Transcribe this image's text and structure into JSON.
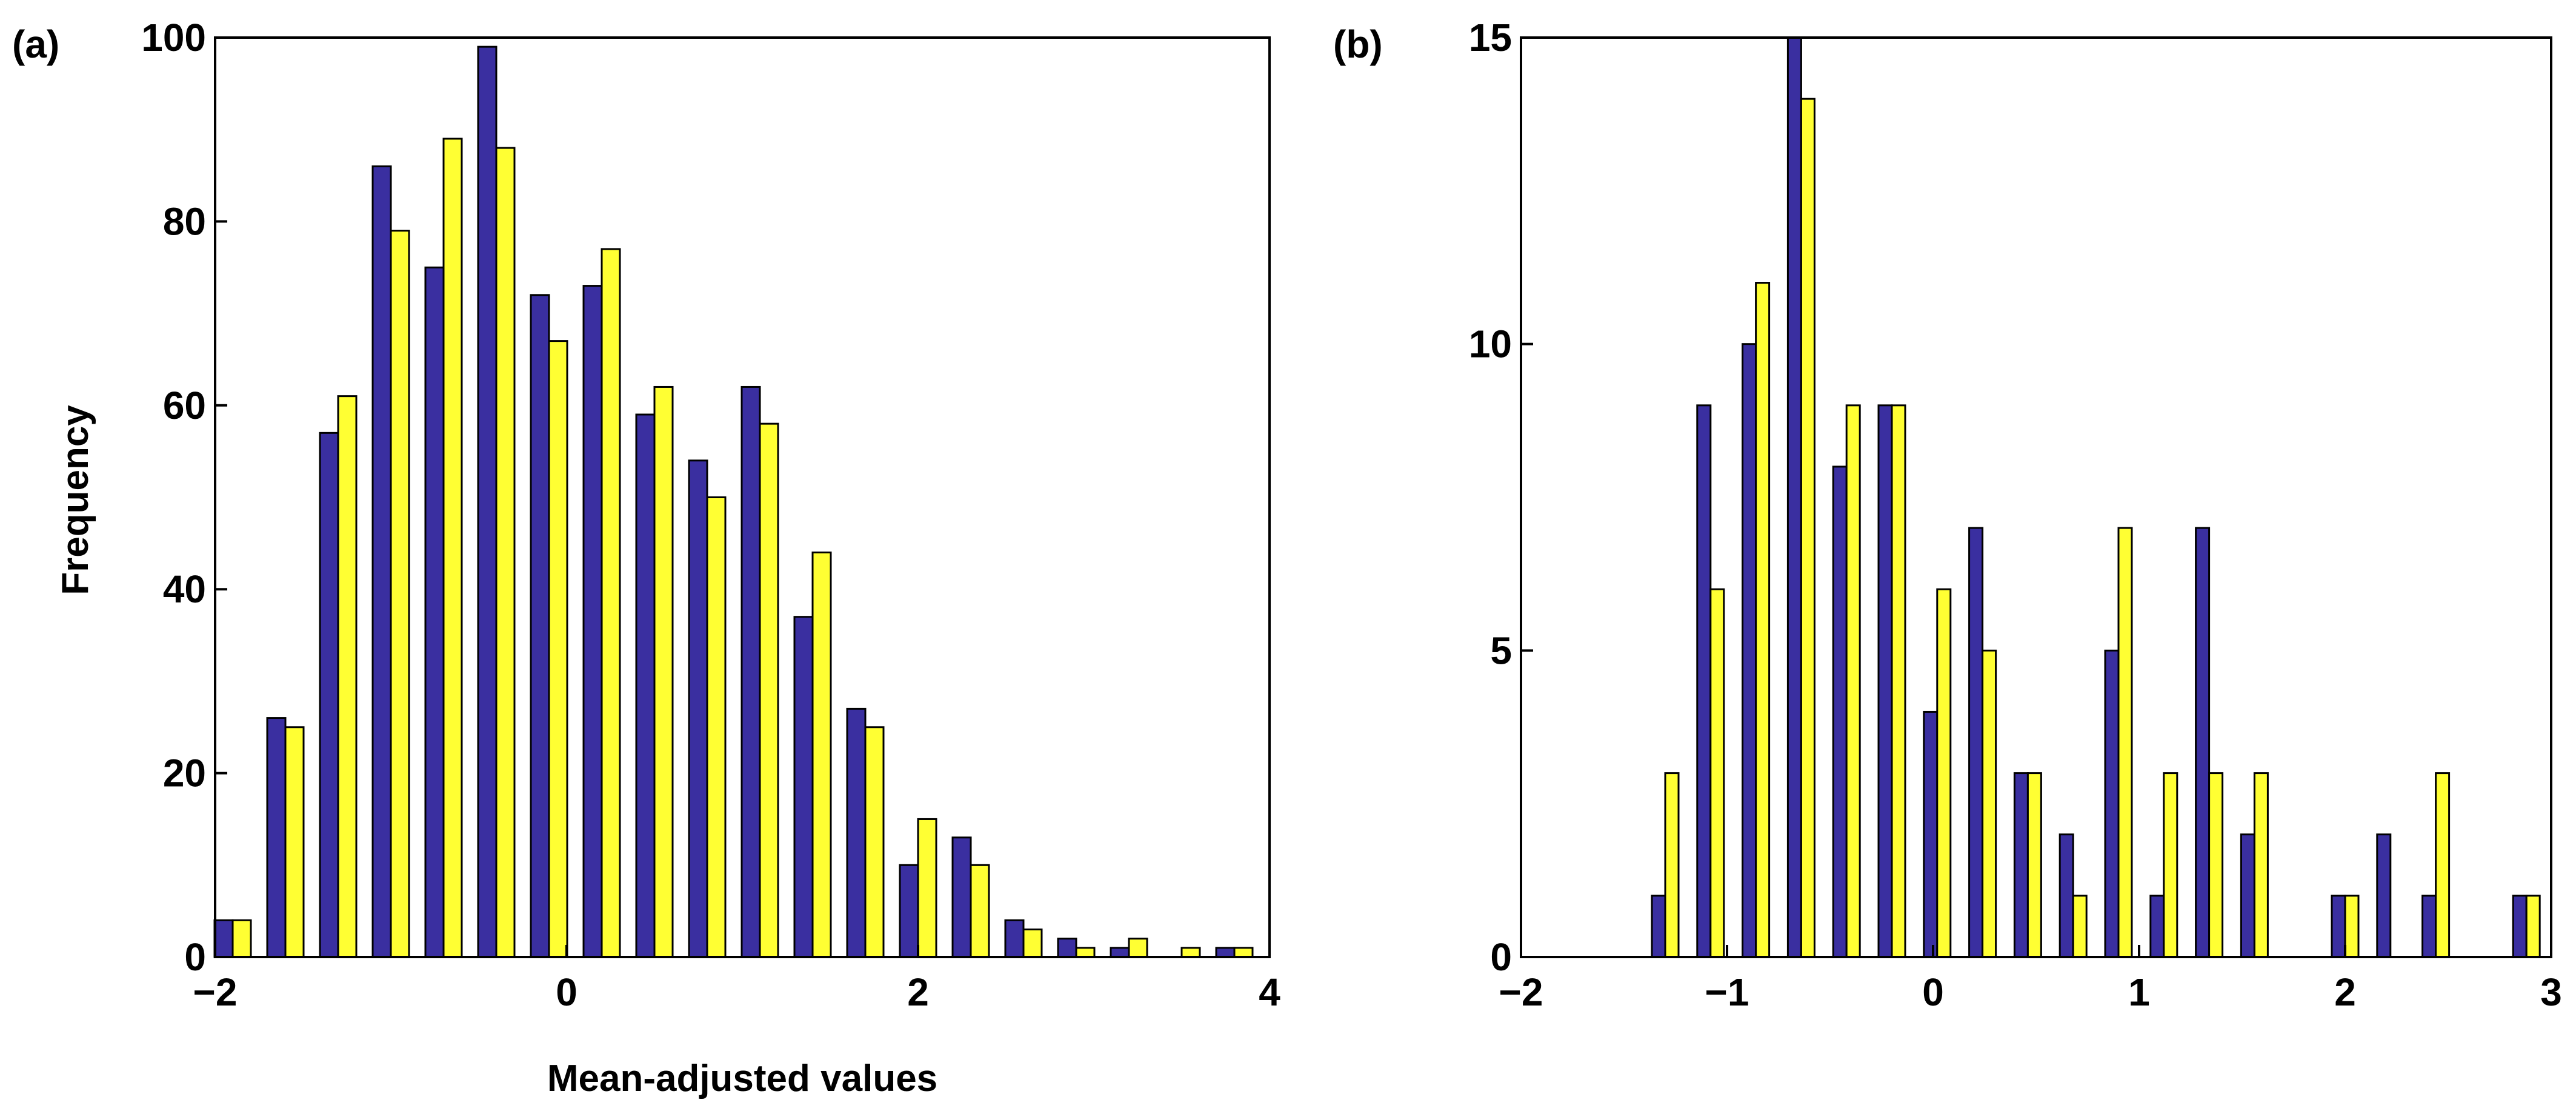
{
  "chart_data": [
    {
      "panel_label": "(a)",
      "type": "bar",
      "xlabel": "Mean-adjusted values",
      "ylabel": "Frequency",
      "xlim": [
        -2,
        4
      ],
      "ylim": [
        0,
        100
      ],
      "xticks": [
        -2,
        0,
        2,
        4
      ],
      "xtick_labels": [
        "−2",
        "0",
        "2",
        "4"
      ],
      "yticks": [
        0,
        20,
        40,
        60,
        80,
        100
      ],
      "ytick_labels": [
        "0",
        "20",
        "40",
        "60",
        "80",
        "100"
      ],
      "bin_centers": [
        -1.9,
        -1.6,
        -1.3,
        -1.0,
        -0.7,
        -0.4,
        -0.1,
        0.2,
        0.5,
        0.8,
        1.1,
        1.4,
        1.7,
        2.0,
        2.3,
        2.6,
        2.9,
        3.2,
        3.5,
        3.8
      ],
      "series": [
        {
          "name": "series-blue",
          "color": "#3a2fa0",
          "values": [
            4,
            26,
            57,
            86,
            75,
            99,
            72,
            73,
            59,
            54,
            62,
            37,
            27,
            10,
            13,
            4,
            2,
            1,
            0,
            1
          ]
        },
        {
          "name": "series-yellow",
          "color": "#ffff33",
          "values": [
            4,
            25,
            61,
            79,
            89,
            88,
            67,
            77,
            62,
            50,
            58,
            44,
            25,
            15,
            10,
            3,
            1,
            2,
            1,
            1
          ]
        }
      ]
    },
    {
      "panel_label": "(b)",
      "type": "bar",
      "xlabel": "",
      "ylabel": "",
      "xlim": [
        -2,
        3
      ],
      "ylim": [
        0,
        15
      ],
      "xticks": [
        -2,
        -1,
        0,
        1,
        2,
        3
      ],
      "xtick_labels": [
        "−2",
        "−1",
        "0",
        "1",
        "2",
        "3"
      ],
      "yticks": [
        0,
        5,
        10,
        15
      ],
      "ytick_labels": [
        "0",
        "5",
        "10",
        "15"
      ],
      "bin_centers": [
        -1.3,
        -1.08,
        -0.86,
        -0.64,
        -0.42,
        -0.2,
        0.02,
        0.24,
        0.46,
        0.68,
        0.9,
        1.12,
        1.34,
        1.56,
        1.78,
        2.0,
        2.22,
        2.44,
        2.66,
        2.88
      ],
      "series": [
        {
          "name": "series-blue",
          "color": "#3a2fa0",
          "values": [
            1,
            9,
            10,
            15,
            8,
            9,
            4,
            7,
            3,
            2,
            5,
            1,
            7,
            2,
            0,
            1,
            2,
            1,
            0,
            1
          ]
        },
        {
          "name": "series-yellow",
          "color": "#ffff33",
          "values": [
            3,
            6,
            11,
            14,
            9,
            9,
            6,
            5,
            3,
            1,
            7,
            3,
            3,
            3,
            0,
            1,
            0,
            3,
            0,
            1
          ]
        }
      ]
    }
  ]
}
